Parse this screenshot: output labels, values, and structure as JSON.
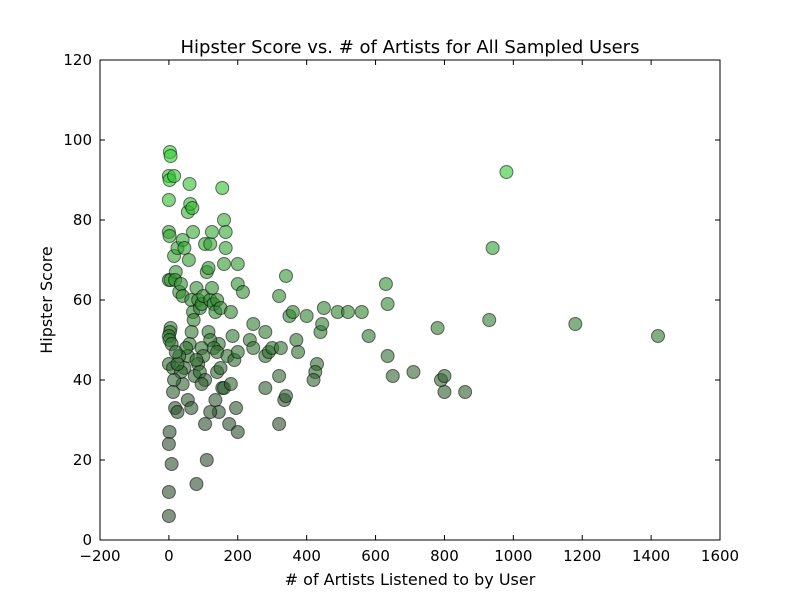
{
  "chart_data": {
    "type": "scatter",
    "title": "Hipster Score vs. # of Artists for All Sampled Users",
    "xlabel": "# of Artists Listened to by User",
    "ylabel": "Hipster Score",
    "xlim": [
      -200,
      1600
    ],
    "ylim": [
      0,
      120
    ],
    "xticks": [
      -200,
      0,
      200,
      400,
      600,
      800,
      1000,
      1200,
      1400,
      1600
    ],
    "yticks": [
      0,
      20,
      40,
      60,
      80,
      100,
      120
    ],
    "grid": false,
    "color_low": "#2f4f2f",
    "color_high": "#33cc33",
    "points": [
      [
        3,
        97
      ],
      [
        5,
        96
      ],
      [
        0,
        91
      ],
      [
        2,
        90
      ],
      [
        15,
        91
      ],
      [
        0,
        85
      ],
      [
        0,
        77
      ],
      [
        2,
        76
      ],
      [
        0,
        65
      ],
      [
        5,
        65
      ],
      [
        5,
        53
      ],
      [
        3,
        52
      ],
      [
        0,
        51
      ],
      [
        2,
        50
      ],
      [
        8,
        49
      ],
      [
        0,
        44
      ],
      [
        12,
        43
      ],
      [
        2,
        27
      ],
      [
        0,
        24
      ],
      [
        8,
        19
      ],
      [
        0,
        12
      ],
      [
        0,
        6
      ],
      [
        15,
        71
      ],
      [
        20,
        67
      ],
      [
        18,
        65
      ],
      [
        25,
        73
      ],
      [
        30,
        62
      ],
      [
        35,
        64
      ],
      [
        40,
        75
      ],
      [
        45,
        73
      ],
      [
        40,
        61
      ],
      [
        55,
        82
      ],
      [
        60,
        89
      ],
      [
        62,
        84
      ],
      [
        68,
        83
      ],
      [
        58,
        70
      ],
      [
        70,
        77
      ],
      [
        65,
        60
      ],
      [
        70,
        57
      ],
      [
        72,
        55
      ],
      [
        66,
        52
      ],
      [
        60,
        49
      ],
      [
        55,
        46
      ],
      [
        50,
        48
      ],
      [
        45,
        43
      ],
      [
        40,
        39
      ],
      [
        35,
        42
      ],
      [
        30,
        46
      ],
      [
        25,
        44
      ],
      [
        20,
        47
      ],
      [
        15,
        40
      ],
      [
        12,
        37
      ],
      [
        18,
        33
      ],
      [
        25,
        32
      ],
      [
        55,
        35
      ],
      [
        65,
        33
      ],
      [
        80,
        63
      ],
      [
        85,
        60
      ],
      [
        90,
        58
      ],
      [
        95,
        59
      ],
      [
        100,
        61
      ],
      [
        105,
        74
      ],
      [
        110,
        67
      ],
      [
        115,
        68
      ],
      [
        120,
        74
      ],
      [
        125,
        77
      ],
      [
        115,
        52
      ],
      [
        120,
        60
      ],
      [
        125,
        63
      ],
      [
        130,
        59
      ],
      [
        135,
        57
      ],
      [
        140,
        60
      ],
      [
        145,
        49
      ],
      [
        150,
        58
      ],
      [
        155,
        88
      ],
      [
        160,
        80
      ],
      [
        165,
        77
      ],
      [
        165,
        73
      ],
      [
        160,
        69
      ],
      [
        200,
        69
      ],
      [
        200,
        64
      ],
      [
        215,
        62
      ],
      [
        180,
        57
      ],
      [
        185,
        51
      ],
      [
        120,
        50
      ],
      [
        130,
        48
      ],
      [
        140,
        47
      ],
      [
        95,
        48
      ],
      [
        100,
        46
      ],
      [
        85,
        44
      ],
      [
        75,
        41
      ],
      [
        80,
        45
      ],
      [
        90,
        42
      ],
      [
        105,
        40
      ],
      [
        95,
        39
      ],
      [
        140,
        42
      ],
      [
        150,
        43
      ],
      [
        155,
        38
      ],
      [
        160,
        38
      ],
      [
        170,
        46
      ],
      [
        180,
        39
      ],
      [
        190,
        45
      ],
      [
        200,
        47
      ],
      [
        135,
        35
      ],
      [
        145,
        32
      ],
      [
        120,
        32
      ],
      [
        105,
        29
      ],
      [
        110,
        20
      ],
      [
        80,
        14
      ],
      [
        175,
        29
      ],
      [
        195,
        33
      ],
      [
        200,
        27
      ],
      [
        235,
        50
      ],
      [
        245,
        54
      ],
      [
        245,
        48
      ],
      [
        280,
        52
      ],
      [
        280,
        46
      ],
      [
        290,
        47
      ],
      [
        300,
        48
      ],
      [
        280,
        38
      ],
      [
        320,
        61
      ],
      [
        340,
        66
      ],
      [
        350,
        56
      ],
      [
        360,
        57
      ],
      [
        325,
        48
      ],
      [
        370,
        50
      ],
      [
        375,
        47
      ],
      [
        400,
        56
      ],
      [
        320,
        41
      ],
      [
        335,
        35
      ],
      [
        340,
        36
      ],
      [
        320,
        29
      ],
      [
        430,
        44
      ],
      [
        425,
        42
      ],
      [
        420,
        40
      ],
      [
        440,
        52
      ],
      [
        445,
        54
      ],
      [
        450,
        58
      ],
      [
        490,
        57
      ],
      [
        520,
        57
      ],
      [
        560,
        57
      ],
      [
        580,
        51
      ],
      [
        630,
        64
      ],
      [
        635,
        59
      ],
      [
        635,
        46
      ],
      [
        650,
        41
      ],
      [
        710,
        42
      ],
      [
        780,
        53
      ],
      [
        790,
        40
      ],
      [
        800,
        41
      ],
      [
        800,
        37
      ],
      [
        860,
        37
      ],
      [
        930,
        55
      ],
      [
        940,
        73
      ],
      [
        980,
        92
      ],
      [
        1180,
        54
      ],
      [
        1420,
        51
      ]
    ]
  }
}
